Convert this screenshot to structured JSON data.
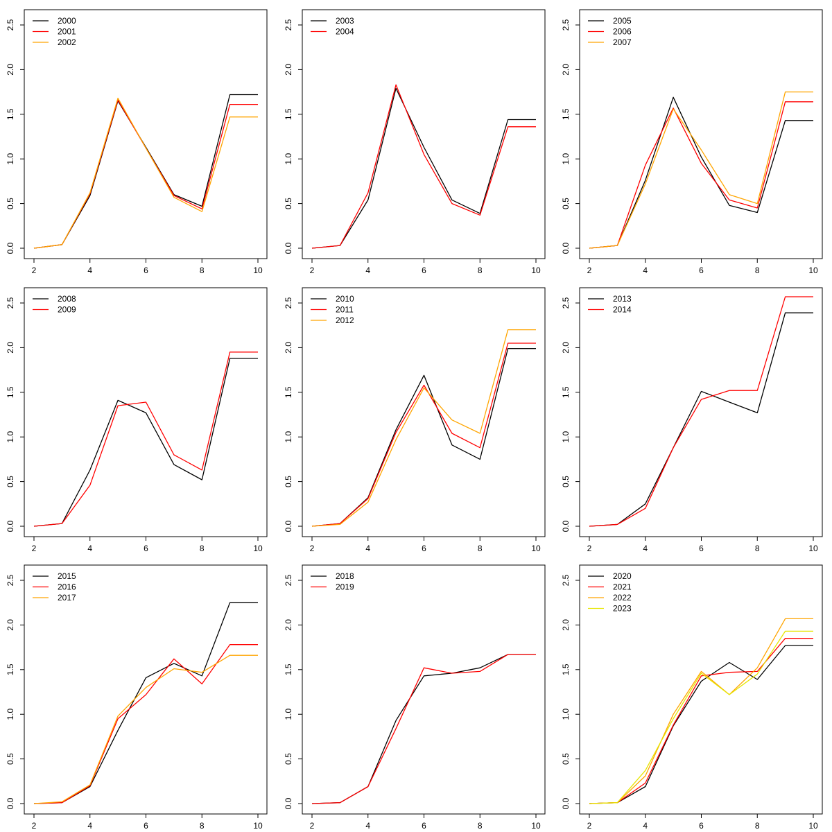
{
  "chart_data": [
    {
      "type": "line",
      "xlim": [
        2,
        10
      ],
      "ylim": [
        0,
        2.5
      ],
      "x": [
        2,
        3,
        4,
        5,
        6,
        7,
        8,
        9,
        10
      ],
      "x_ticks": [
        2,
        4,
        6,
        8,
        10
      ],
      "y_ticks": [
        "0.0",
        "0.5",
        "1.0",
        "1.5",
        "2.0",
        "2.5"
      ],
      "legend_position": "top-left",
      "series": [
        {
          "name": "2000",
          "color": "#000000",
          "values": [
            0,
            0.04,
            0.59,
            1.65,
            1.13,
            0.6,
            0.47,
            1.72,
            1.72
          ]
        },
        {
          "name": "2001",
          "color": "#ff0000",
          "values": [
            0,
            0.04,
            0.61,
            1.66,
            1.12,
            0.59,
            0.44,
            1.61,
            1.61
          ]
        },
        {
          "name": "2002",
          "color": "#ffa500",
          "values": [
            0,
            0.04,
            0.62,
            1.68,
            1.12,
            0.57,
            0.41,
            1.47,
            1.47
          ]
        }
      ]
    },
    {
      "type": "line",
      "xlim": [
        2,
        10
      ],
      "ylim": [
        0,
        2.5
      ],
      "x": [
        2,
        3,
        4,
        5,
        6,
        7,
        8,
        9,
        10
      ],
      "x_ticks": [
        2,
        4,
        6,
        8,
        10
      ],
      "y_ticks": [
        "0.0",
        "0.5",
        "1.0",
        "1.5",
        "2.0",
        "2.5"
      ],
      "legend_position": "top-left",
      "series": [
        {
          "name": "2003",
          "color": "#000000",
          "values": [
            0,
            0.03,
            0.54,
            1.79,
            1.13,
            0.54,
            0.39,
            1.44,
            1.44
          ]
        },
        {
          "name": "2004",
          "color": "#ff0000",
          "values": [
            0,
            0.03,
            0.62,
            1.83,
            1.05,
            0.5,
            0.37,
            1.36,
            1.36
          ]
        }
      ]
    },
    {
      "type": "line",
      "xlim": [
        2,
        10
      ],
      "ylim": [
        0,
        2.5
      ],
      "x": [
        2,
        3,
        4,
        5,
        6,
        7,
        8,
        9,
        10
      ],
      "x_ticks": [
        2,
        4,
        6,
        8,
        10
      ],
      "y_ticks": [
        "0.0",
        "0.5",
        "1.0",
        "1.5",
        "2.0",
        "2.5"
      ],
      "legend_position": "top-left",
      "series": [
        {
          "name": "2005",
          "color": "#000000",
          "values": [
            0,
            0.03,
            0.76,
            1.69,
            1.02,
            0.48,
            0.4,
            1.43,
            1.43
          ]
        },
        {
          "name": "2006",
          "color": "#ff0000",
          "values": [
            0,
            0.03,
            0.93,
            1.57,
            0.95,
            0.54,
            0.45,
            1.64,
            1.64
          ]
        },
        {
          "name": "2007",
          "color": "#ffa500",
          "values": [
            0,
            0.03,
            0.72,
            1.56,
            1.1,
            0.6,
            0.5,
            1.75,
            1.75
          ]
        }
      ]
    },
    {
      "type": "line",
      "xlim": [
        2,
        10
      ],
      "ylim": [
        0,
        2.5
      ],
      "x": [
        2,
        3,
        4,
        5,
        6,
        7,
        8,
        9,
        10
      ],
      "x_ticks": [
        2,
        4,
        6,
        8,
        10
      ],
      "y_ticks": [
        "0.0",
        "0.5",
        "1.0",
        "1.5",
        "2.0",
        "2.5"
      ],
      "legend_position": "top-left",
      "series": [
        {
          "name": "2008",
          "color": "#000000",
          "values": [
            0,
            0.03,
            0.63,
            1.41,
            1.27,
            0.69,
            0.52,
            1.88,
            1.88
          ]
        },
        {
          "name": "2009",
          "color": "#ff0000",
          "values": [
            0,
            0.03,
            0.46,
            1.35,
            1.39,
            0.8,
            0.63,
            1.95,
            1.95
          ]
        }
      ]
    },
    {
      "type": "line",
      "xlim": [
        2,
        10
      ],
      "ylim": [
        0,
        2.5
      ],
      "x": [
        2,
        3,
        4,
        5,
        6,
        7,
        8,
        9,
        10
      ],
      "x_ticks": [
        2,
        4,
        6,
        8,
        10
      ],
      "y_ticks": [
        "0.0",
        "0.5",
        "1.0",
        "1.5",
        "2.0",
        "2.5"
      ],
      "legend_position": "top-left",
      "series": [
        {
          "name": "2010",
          "color": "#000000",
          "values": [
            0,
            0.03,
            0.32,
            1.08,
            1.69,
            0.91,
            0.75,
            1.99,
            1.99
          ]
        },
        {
          "name": "2011",
          "color": "#ff0000",
          "values": [
            0,
            0.03,
            0.31,
            1.05,
            1.58,
            1.04,
            0.88,
            2.05,
            2.05
          ]
        },
        {
          "name": "2012",
          "color": "#ffa500",
          "values": [
            0,
            0.02,
            0.27,
            0.97,
            1.55,
            1.19,
            1.04,
            2.2,
            2.2
          ]
        }
      ]
    },
    {
      "type": "line",
      "xlim": [
        2,
        10
      ],
      "ylim": [
        0,
        2.5
      ],
      "x": [
        2,
        3,
        4,
        5,
        6,
        7,
        8,
        9,
        10
      ],
      "x_ticks": [
        2,
        4,
        6,
        8,
        10
      ],
      "y_ticks": [
        "0.0",
        "0.5",
        "1.0",
        "1.5",
        "2.0",
        "2.5"
      ],
      "legend_position": "top-left",
      "series": [
        {
          "name": "2013",
          "color": "#000000",
          "values": [
            0,
            0.02,
            0.25,
            0.88,
            1.51,
            1.39,
            1.27,
            2.39,
            2.39
          ]
        },
        {
          "name": "2014",
          "color": "#ff0000",
          "values": [
            0,
            0.02,
            0.2,
            0.88,
            1.42,
            1.52,
            1.52,
            2.57,
            2.57
          ]
        }
      ]
    },
    {
      "type": "line",
      "xlim": [
        2,
        10
      ],
      "ylim": [
        0,
        2.5
      ],
      "x": [
        2,
        3,
        4,
        5,
        6,
        7,
        8,
        9,
        10
      ],
      "x_ticks": [
        2,
        4,
        6,
        8,
        10
      ],
      "y_ticks": [
        "0.0",
        "0.5",
        "1.0",
        "1.5",
        "2.0",
        "2.5"
      ],
      "legend_position": "top-left",
      "series": [
        {
          "name": "2015",
          "color": "#000000",
          "values": [
            0,
            0.01,
            0.19,
            0.82,
            1.41,
            1.57,
            1.43,
            2.25,
            2.25
          ]
        },
        {
          "name": "2016",
          "color": "#ff0000",
          "values": [
            0,
            0.01,
            0.2,
            0.95,
            1.22,
            1.62,
            1.34,
            1.78,
            1.78
          ]
        },
        {
          "name": "2017",
          "color": "#ffa500",
          "values": [
            0,
            0.02,
            0.21,
            0.98,
            1.3,
            1.51,
            1.47,
            1.66,
            1.66
          ]
        }
      ]
    },
    {
      "type": "line",
      "xlim": [
        2,
        10
      ],
      "ylim": [
        0,
        2.5
      ],
      "x": [
        2,
        3,
        4,
        5,
        6,
        7,
        8,
        9,
        10
      ],
      "x_ticks": [
        2,
        4,
        6,
        8,
        10
      ],
      "y_ticks": [
        "0.0",
        "0.5",
        "1.0",
        "1.5",
        "2.0",
        "2.5"
      ],
      "legend_position": "top-left",
      "series": [
        {
          "name": "2018",
          "color": "#000000",
          "values": [
            0,
            0.01,
            0.19,
            0.93,
            1.43,
            1.46,
            1.52,
            1.67,
            1.67
          ]
        },
        {
          "name": "2019",
          "color": "#ff0000",
          "values": [
            0,
            0.01,
            0.19,
            0.84,
            1.52,
            1.46,
            1.48,
            1.67,
            1.67
          ]
        }
      ]
    },
    {
      "type": "line",
      "xlim": [
        2,
        10
      ],
      "ylim": [
        0,
        2.5
      ],
      "x": [
        2,
        3,
        4,
        5,
        6,
        7,
        8,
        9,
        10
      ],
      "x_ticks": [
        2,
        4,
        6,
        8,
        10
      ],
      "y_ticks": [
        "0.0",
        "0.5",
        "1.0",
        "1.5",
        "2.0",
        "2.5"
      ],
      "legend_position": "top-left",
      "series": [
        {
          "name": "2020",
          "color": "#000000",
          "values": [
            0,
            0.01,
            0.19,
            0.87,
            1.37,
            1.58,
            1.39,
            1.77,
            1.77
          ]
        },
        {
          "name": "2021",
          "color": "#ff0000",
          "values": [
            0,
            0.01,
            0.23,
            0.88,
            1.43,
            1.47,
            1.48,
            1.85,
            1.85
          ]
        },
        {
          "name": "2022",
          "color": "#ffa500",
          "values": [
            0,
            0.01,
            0.31,
            1.0,
            1.48,
            1.22,
            1.52,
            2.07,
            2.07
          ]
        },
        {
          "name": "2023",
          "color": "#e6e600",
          "values": [
            0,
            0.01,
            0.37,
            0.95,
            1.46,
            1.22,
            1.45,
            1.93,
            1.93
          ]
        }
      ]
    }
  ]
}
